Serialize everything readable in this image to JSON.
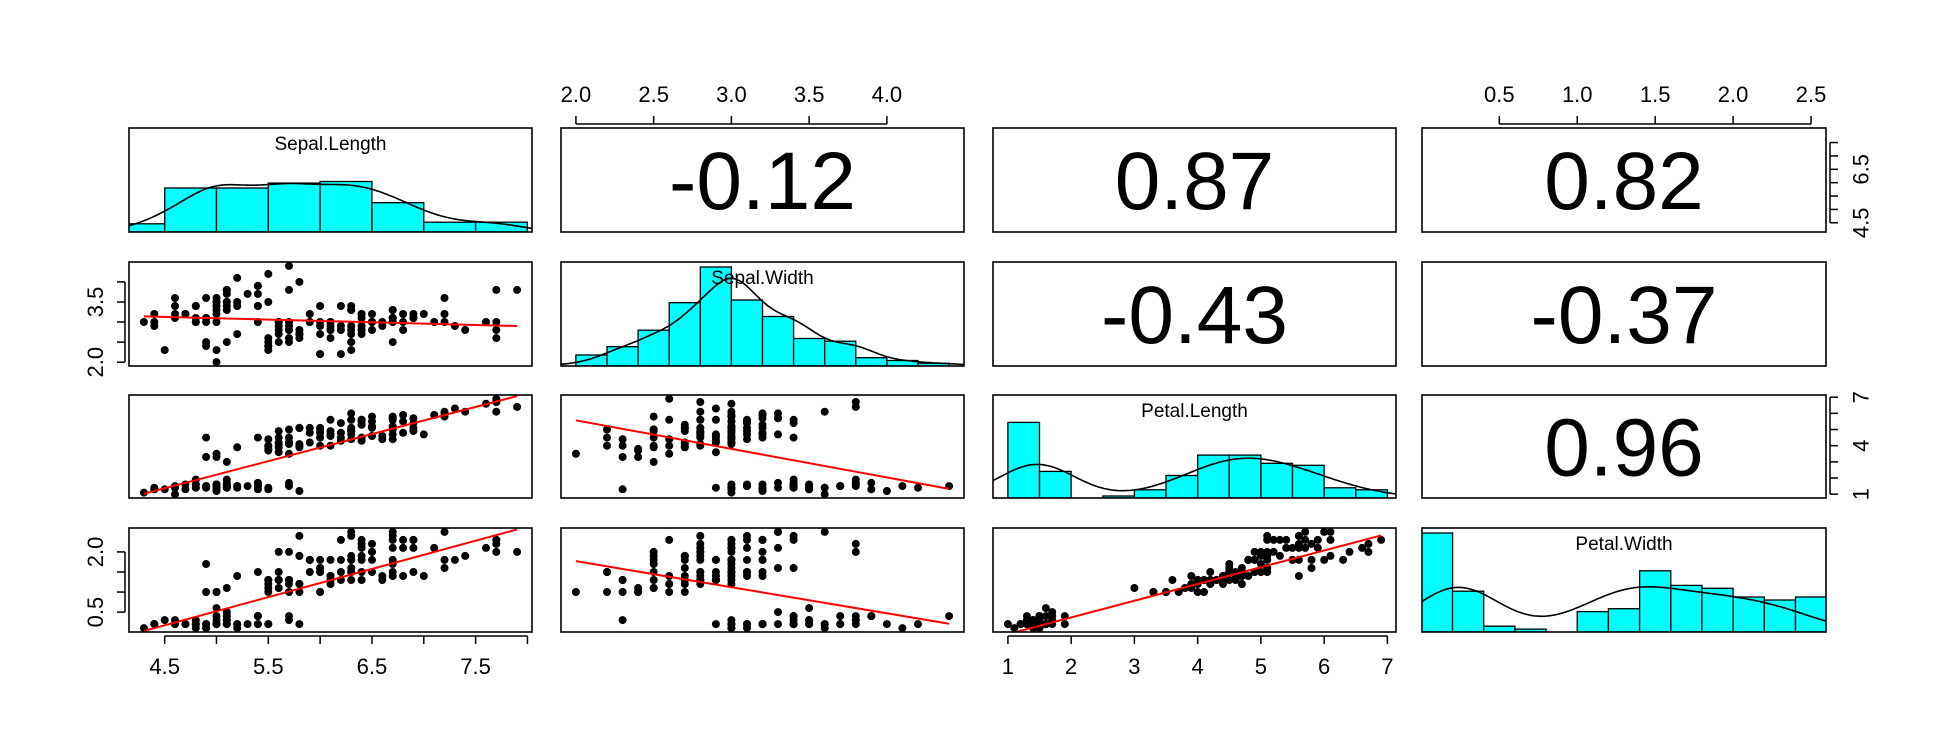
{
  "chart_data": {
    "type": "scatter",
    "kind": "pairs-panel",
    "variables": [
      "Sepal.Length",
      "Sepal.Width",
      "Petal.Length",
      "Petal.Width"
    ],
    "colors": {
      "histogram_fill": "#00FFFF",
      "fit_line": "#FF0000",
      "points": "#000000",
      "frame": "#000000"
    },
    "ranges": [
      [
        4.3,
        7.9
      ],
      [
        2.0,
        4.4
      ],
      [
        1.0,
        6.9
      ],
      [
        0.1,
        2.5
      ]
    ],
    "axes": [
      {
        "name": "Sepal.Length",
        "side": "bottom",
        "ticks": [
          4.5,
          5.5,
          6.5,
          7.5
        ],
        "labels": [
          "4.5",
          "5.5",
          "6.5",
          "7.5"
        ],
        "minor_ticks": [
          5.0,
          6.0,
          7.0,
          8.0
        ]
      },
      {
        "name": "Sepal.Length",
        "side": "right",
        "ticks": [
          4.5,
          6.5
        ],
        "labels": [
          "4.5",
          "6.5"
        ],
        "minor_ticks": [
          5.0,
          5.5,
          6.0,
          7.0,
          7.5
        ]
      },
      {
        "name": "Sepal.Width",
        "side": "top",
        "ticks": [
          2.0,
          2.5,
          3.0,
          3.5,
          4.0
        ],
        "labels": [
          "2.0",
          "2.5",
          "3.0",
          "3.5",
          "4.0"
        ],
        "minor_ticks": []
      },
      {
        "name": "Sepal.Width",
        "side": "left",
        "ticks": [
          2.0,
          3.5
        ],
        "labels": [
          "2.0",
          "3.5"
        ],
        "minor_ticks": [
          2.5,
          3.0,
          4.0
        ]
      },
      {
        "name": "Petal.Length",
        "side": "bottom",
        "ticks": [
          1,
          2,
          3,
          4,
          5,
          6,
          7
        ],
        "labels": [
          "1",
          "2",
          "3",
          "4",
          "5",
          "6",
          "7"
        ],
        "minor_ticks": []
      },
      {
        "name": "Petal.Length",
        "side": "right",
        "ticks": [
          1,
          4,
          7
        ],
        "labels": [
          "1",
          "4",
          "7"
        ],
        "minor_ticks": [
          2,
          3,
          5,
          6
        ]
      },
      {
        "name": "Petal.Width",
        "side": "top",
        "ticks": [
          0.5,
          1.0,
          1.5,
          2.0,
          2.5
        ],
        "labels": [
          "0.5",
          "1.0",
          "1.5",
          "2.0",
          "2.5"
        ],
        "minor_ticks": []
      },
      {
        "name": "Petal.Width",
        "side": "left",
        "ticks": [
          0.5,
          2.0
        ],
        "labels": [
          "0.5",
          "2.0"
        ],
        "minor_ticks": [
          1.0,
          1.5
        ]
      }
    ],
    "correlations": [
      {
        "row": 0,
        "col": 1,
        "value": "-0.12"
      },
      {
        "row": 0,
        "col": 2,
        "value": "0.87"
      },
      {
        "row": 0,
        "col": 3,
        "value": "0.82"
      },
      {
        "row": 1,
        "col": 2,
        "value": "-0.43"
      },
      {
        "row": 1,
        "col": 3,
        "value": "-0.37"
      },
      {
        "row": 2,
        "col": 3,
        "value": "0.96"
      }
    ],
    "histograms": [
      {
        "variable": "Sepal.Length",
        "breaks": [
          4.0,
          4.5,
          5.0,
          5.5,
          6.0,
          6.5,
          7.0,
          7.5,
          8.0
        ],
        "counts": [
          5,
          27,
          27,
          30,
          31,
          18,
          6,
          6
        ],
        "density_peak": 0.81
      },
      {
        "variable": "Sepal.Width",
        "breaks": [
          2.0,
          2.2,
          2.4,
          2.6,
          2.8,
          3.0,
          3.2,
          3.4,
          3.6,
          3.8,
          4.0,
          4.2,
          4.4
        ],
        "counts": [
          4,
          7,
          13,
          23,
          36,
          24,
          18,
          10,
          9,
          3,
          2,
          1
        ],
        "density_peak": 0.96
      },
      {
        "variable": "Petal.Length",
        "breaks": [
          1.0,
          1.5,
          2.0,
          2.5,
          3.0,
          3.5,
          4.0,
          4.5,
          5.0,
          5.5,
          6.0,
          6.5,
          7.0
        ],
        "counts": [
          37,
          13,
          0,
          1,
          4,
          11,
          21,
          21,
          17,
          16,
          5,
          4
        ],
        "density_peak": 0.64
      },
      {
        "variable": "Petal.Width",
        "breaks": [
          0.0,
          0.2,
          0.4,
          0.6,
          0.8,
          1.0,
          1.2,
          1.4,
          1.6,
          1.8,
          2.0,
          2.2,
          2.4,
          2.6
        ],
        "counts": [
          34,
          14,
          2,
          1,
          0,
          7,
          8,
          21,
          16,
          15,
          12,
          11,
          12,
          3
        ],
        "density_peak": 0.84
      }
    ],
    "fit_lines": [
      {
        "row": 1,
        "col": 0,
        "x": [
          4.3,
          7.9
        ],
        "y": [
          3.14,
          2.9
        ]
      },
      {
        "row": 2,
        "col": 0,
        "x": [
          4.3,
          7.9
        ],
        "y": [
          1.03,
          7.07
        ]
      },
      {
        "row": 3,
        "col": 0,
        "x": [
          4.3,
          7.9
        ],
        "y": [
          0.03,
          2.56
        ]
      },
      {
        "row": 2,
        "col": 1,
        "x": [
          2.0,
          4.4
        ],
        "y": [
          5.57,
          1.33
        ]
      },
      {
        "row": 3,
        "col": 1,
        "x": [
          2.0,
          4.4
        ],
        "y": [
          1.77,
          0.21
        ]
      },
      {
        "row": 3,
        "col": 2,
        "x": [
          1.0,
          6.9
        ],
        "y": [
          -0.05,
          2.41
        ]
      }
    ],
    "scatter_panels": [
      {
        "row": 1,
        "col": 0,
        "x_var": "Sepal.Length",
        "y_var": "Sepal.Width"
      },
      {
        "row": 2,
        "col": 0,
        "x_var": "Sepal.Length",
        "y_var": "Petal.Length"
      },
      {
        "row": 3,
        "col": 0,
        "x_var": "Sepal.Length",
        "y_var": "Petal.Width"
      },
      {
        "row": 2,
        "col": 1,
        "x_var": "Sepal.Width",
        "y_var": "Petal.Length"
      },
      {
        "row": 3,
        "col": 1,
        "x_var": "Sepal.Width",
        "y_var": "Petal.Width"
      },
      {
        "row": 3,
        "col": 2,
        "x_var": "Petal.Length",
        "y_var": "Petal.Width"
      }
    ],
    "observations": [
      [
        5.1,
        3.5,
        1.4,
        0.2
      ],
      [
        4.9,
        3.0,
        1.4,
        0.2
      ],
      [
        4.7,
        3.2,
        1.3,
        0.2
      ],
      [
        4.6,
        3.1,
        1.5,
        0.2
      ],
      [
        5.0,
        3.6,
        1.4,
        0.2
      ],
      [
        5.4,
        3.9,
        1.7,
        0.4
      ],
      [
        4.6,
        3.4,
        1.4,
        0.3
      ],
      [
        5.0,
        3.4,
        1.5,
        0.2
      ],
      [
        4.4,
        2.9,
        1.4,
        0.2
      ],
      [
        4.9,
        3.1,
        1.5,
        0.1
      ],
      [
        5.4,
        3.7,
        1.5,
        0.2
      ],
      [
        4.8,
        3.4,
        1.6,
        0.2
      ],
      [
        4.8,
        3.0,
        1.4,
        0.1
      ],
      [
        4.3,
        3.0,
        1.1,
        0.1
      ],
      [
        5.8,
        4.0,
        1.2,
        0.2
      ],
      [
        5.7,
        4.4,
        1.5,
        0.4
      ],
      [
        5.4,
        3.9,
        1.3,
        0.4
      ],
      [
        5.1,
        3.5,
        1.4,
        0.3
      ],
      [
        5.7,
        3.8,
        1.7,
        0.3
      ],
      [
        5.1,
        3.8,
        1.5,
        0.3
      ],
      [
        5.4,
        3.4,
        1.7,
        0.2
      ],
      [
        5.1,
        3.7,
        1.5,
        0.4
      ],
      [
        4.6,
        3.6,
        1.0,
        0.2
      ],
      [
        5.1,
        3.3,
        1.7,
        0.5
      ],
      [
        4.8,
        3.4,
        1.9,
        0.2
      ],
      [
        5.0,
        3.0,
        1.6,
        0.2
      ],
      [
        5.0,
        3.4,
        1.6,
        0.4
      ],
      [
        5.2,
        3.5,
        1.5,
        0.2
      ],
      [
        5.2,
        3.4,
        1.4,
        0.2
      ],
      [
        4.7,
        3.2,
        1.6,
        0.2
      ],
      [
        4.8,
        3.1,
        1.6,
        0.2
      ],
      [
        5.4,
        3.4,
        1.5,
        0.4
      ],
      [
        5.2,
        4.1,
        1.5,
        0.1
      ],
      [
        5.5,
        4.2,
        1.4,
        0.2
      ],
      [
        4.9,
        3.1,
        1.5,
        0.2
      ],
      [
        5.0,
        3.2,
        1.2,
        0.2
      ],
      [
        5.5,
        3.5,
        1.3,
        0.2
      ],
      [
        4.9,
        3.6,
        1.4,
        0.1
      ],
      [
        4.4,
        3.0,
        1.3,
        0.2
      ],
      [
        5.1,
        3.4,
        1.5,
        0.2
      ],
      [
        5.0,
        3.5,
        1.3,
        0.3
      ],
      [
        4.5,
        2.3,
        1.3,
        0.3
      ],
      [
        4.4,
        3.2,
        1.3,
        0.2
      ],
      [
        5.0,
        3.5,
        1.6,
        0.6
      ],
      [
        5.1,
        3.8,
        1.9,
        0.4
      ],
      [
        4.8,
        3.0,
        1.4,
        0.3
      ],
      [
        5.1,
        3.8,
        1.6,
        0.2
      ],
      [
        4.6,
        3.2,
        1.4,
        0.2
      ],
      [
        5.3,
        3.7,
        1.5,
        0.2
      ],
      [
        5.0,
        3.3,
        1.4,
        0.2
      ],
      [
        7.0,
        3.2,
        4.7,
        1.4
      ],
      [
        6.4,
        3.2,
        4.5,
        1.5
      ],
      [
        6.9,
        3.1,
        4.9,
        1.5
      ],
      [
        5.5,
        2.3,
        4.0,
        1.3
      ],
      [
        6.5,
        2.8,
        4.6,
        1.5
      ],
      [
        5.7,
        2.8,
        4.5,
        1.3
      ],
      [
        6.3,
        3.3,
        4.7,
        1.6
      ],
      [
        4.9,
        2.4,
        3.3,
        1.0
      ],
      [
        6.6,
        2.9,
        4.6,
        1.3
      ],
      [
        5.2,
        2.7,
        3.9,
        1.4
      ],
      [
        5.0,
        2.0,
        3.5,
        1.0
      ],
      [
        5.9,
        3.0,
        4.2,
        1.5
      ],
      [
        6.0,
        2.2,
        4.0,
        1.0
      ],
      [
        6.1,
        2.9,
        4.7,
        1.4
      ],
      [
        5.6,
        2.9,
        3.6,
        1.3
      ],
      [
        6.7,
        3.1,
        4.4,
        1.4
      ],
      [
        5.6,
        3.0,
        4.5,
        1.5
      ],
      [
        5.8,
        2.7,
        4.1,
        1.0
      ],
      [
        6.2,
        2.2,
        4.5,
        1.5
      ],
      [
        5.6,
        2.5,
        3.9,
        1.1
      ],
      [
        5.9,
        3.2,
        4.8,
        1.8
      ],
      [
        6.1,
        2.8,
        4.0,
        1.3
      ],
      [
        6.3,
        2.5,
        4.9,
        1.5
      ],
      [
        6.1,
        2.8,
        4.7,
        1.2
      ],
      [
        6.4,
        2.9,
        4.3,
        1.3
      ],
      [
        6.6,
        3.0,
        4.4,
        1.4
      ],
      [
        6.8,
        2.8,
        4.8,
        1.4
      ],
      [
        6.7,
        3.0,
        5.0,
        1.7
      ],
      [
        6.0,
        2.9,
        4.5,
        1.5
      ],
      [
        5.7,
        2.6,
        3.5,
        1.0
      ],
      [
        5.5,
        2.4,
        3.8,
        1.1
      ],
      [
        5.5,
        2.4,
        3.7,
        1.0
      ],
      [
        5.8,
        2.7,
        3.9,
        1.2
      ],
      [
        6.0,
        2.7,
        5.1,
        1.6
      ],
      [
        5.4,
        3.0,
        4.5,
        1.5
      ],
      [
        6.0,
        3.4,
        4.5,
        1.6
      ],
      [
        6.7,
        3.1,
        4.7,
        1.5
      ],
      [
        6.3,
        2.3,
        4.4,
        1.3
      ],
      [
        5.6,
        3.0,
        4.1,
        1.3
      ],
      [
        5.5,
        2.5,
        4.0,
        1.3
      ],
      [
        5.5,
        2.6,
        4.4,
        1.2
      ],
      [
        6.1,
        3.0,
        4.6,
        1.4
      ],
      [
        5.8,
        2.6,
        4.0,
        1.2
      ],
      [
        5.0,
        2.3,
        3.3,
        1.0
      ],
      [
        5.6,
        2.7,
        4.2,
        1.3
      ],
      [
        5.7,
        3.0,
        4.2,
        1.2
      ],
      [
        5.7,
        2.9,
        4.2,
        1.3
      ],
      [
        6.2,
        2.9,
        4.3,
        1.3
      ],
      [
        5.1,
        2.5,
        3.0,
        1.1
      ],
      [
        5.7,
        2.8,
        4.1,
        1.3
      ],
      [
        6.3,
        3.3,
        6.0,
        2.5
      ],
      [
        5.8,
        2.7,
        5.1,
        1.9
      ],
      [
        7.1,
        3.0,
        5.9,
        2.1
      ],
      [
        6.3,
        2.9,
        5.6,
        1.8
      ],
      [
        6.5,
        3.0,
        5.8,
        2.2
      ],
      [
        7.6,
        3.0,
        6.6,
        2.1
      ],
      [
        4.9,
        2.5,
        4.5,
        1.7
      ],
      [
        7.3,
        2.9,
        6.3,
        1.8
      ],
      [
        6.7,
        2.5,
        5.8,
        1.8
      ],
      [
        7.2,
        3.6,
        6.1,
        2.5
      ],
      [
        6.5,
        3.2,
        5.1,
        2.0
      ],
      [
        6.4,
        2.7,
        5.3,
        1.9
      ],
      [
        6.8,
        3.0,
        5.5,
        2.1
      ],
      [
        5.7,
        2.5,
        5.0,
        2.0
      ],
      [
        5.8,
        2.8,
        5.1,
        2.4
      ],
      [
        6.4,
        3.2,
        5.3,
        2.3
      ],
      [
        6.5,
        3.0,
        5.5,
        1.8
      ],
      [
        7.7,
        3.8,
        6.7,
        2.2
      ],
      [
        7.7,
        2.6,
        6.9,
        2.3
      ],
      [
        6.0,
        2.2,
        5.0,
        1.5
      ],
      [
        6.9,
        3.2,
        5.7,
        2.3
      ],
      [
        5.6,
        2.8,
        4.9,
        2.0
      ],
      [
        7.7,
        2.8,
        6.7,
        2.0
      ],
      [
        6.3,
        2.7,
        4.9,
        1.8
      ],
      [
        6.7,
        3.3,
        5.7,
        2.1
      ],
      [
        7.2,
        3.2,
        6.0,
        1.8
      ],
      [
        6.2,
        2.8,
        4.8,
        1.8
      ],
      [
        6.1,
        3.0,
        4.9,
        1.8
      ],
      [
        6.4,
        2.8,
        5.6,
        2.1
      ],
      [
        7.2,
        3.0,
        5.8,
        1.6
      ],
      [
        7.4,
        2.8,
        6.1,
        1.9
      ],
      [
        7.9,
        3.8,
        6.4,
        2.0
      ],
      [
        6.4,
        2.8,
        5.6,
        2.2
      ],
      [
        6.3,
        2.8,
        5.1,
        1.5
      ],
      [
        6.1,
        2.6,
        5.6,
        1.4
      ],
      [
        7.7,
        3.0,
        6.1,
        2.3
      ],
      [
        6.3,
        3.4,
        5.6,
        2.4
      ],
      [
        6.4,
        3.1,
        5.5,
        1.8
      ],
      [
        6.0,
        3.0,
        4.8,
        1.8
      ],
      [
        6.9,
        3.1,
        5.4,
        2.1
      ],
      [
        6.7,
        3.1,
        5.6,
        2.4
      ],
      [
        6.9,
        3.1,
        5.1,
        2.3
      ],
      [
        5.8,
        2.7,
        5.1,
        1.9
      ],
      [
        6.8,
        3.2,
        5.9,
        2.3
      ],
      [
        6.7,
        3.3,
        5.7,
        2.5
      ],
      [
        6.7,
        3.0,
        5.2,
        2.3
      ],
      [
        6.3,
        2.5,
        5.0,
        1.9
      ],
      [
        6.5,
        3.0,
        5.2,
        2.0
      ],
      [
        6.2,
        3.4,
        5.4,
        2.3
      ],
      [
        5.9,
        3.0,
        5.1,
        1.8
      ]
    ]
  }
}
